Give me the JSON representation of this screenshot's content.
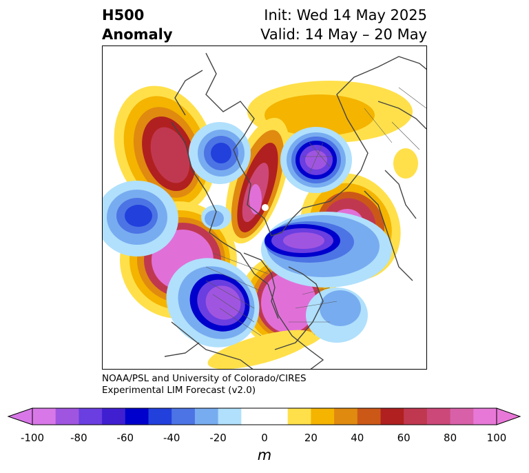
{
  "title": {
    "line1": "H500",
    "line2": "Anomaly"
  },
  "dates": {
    "init": "Init: Wed 14 May 2025",
    "valid": "Valid: 14 May – 20 May"
  },
  "credit": {
    "line1": "NOAA/PSL and University of Colorado/CIRES",
    "line2": "Experimental LIM Forecast (v2.0)"
  },
  "colorbar": {
    "unit": "m",
    "ticks": [
      "-100",
      "-80",
      "-60",
      "-40",
      "-20",
      "0",
      "20",
      "40",
      "60",
      "80",
      "100"
    ],
    "colors": [
      "#d878e8",
      "#a055e0",
      "#6a3ee0",
      "#3f1fd0",
      "#0000cc",
      "#2240dc",
      "#4c74e4",
      "#78acf0",
      "#b0e0fc",
      "#ffffff",
      "#ffffff",
      "#ffe04a",
      "#f4b400",
      "#e08a10",
      "#cc5818",
      "#b02020",
      "#c03850",
      "#cc4878",
      "#d860a8",
      "#e878d8"
    ]
  },
  "colors": {
    "pos_high": "#e070d8",
    "neg_high": "#6a3ee0",
    "coast": "#444444"
  }
}
